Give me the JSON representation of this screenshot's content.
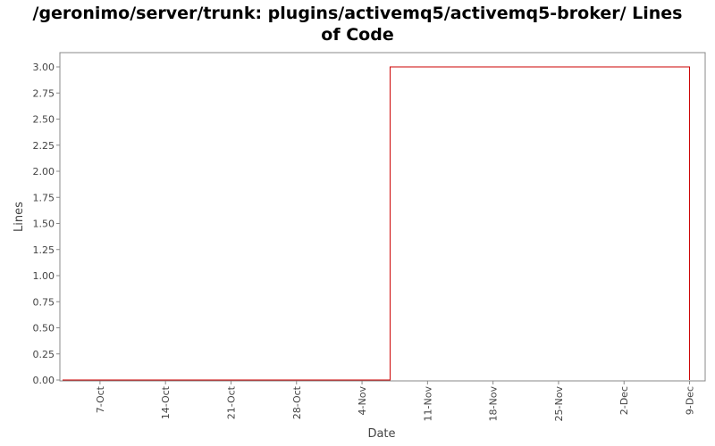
{
  "chart_data": {
    "type": "line",
    "title": "/geronimo/server/trunk: plugins/activemq5/activemq5-broker/ Lines of Code",
    "xlabel": "Date",
    "ylabel": "Lines",
    "x_ticks": [
      "7-Oct",
      "14-Oct",
      "21-Oct",
      "28-Oct",
      "4-Nov",
      "11-Nov",
      "18-Nov",
      "25-Nov",
      "2-Dec",
      "9-Dec"
    ],
    "y_ticks": [
      "0.00",
      "0.25",
      "0.50",
      "0.75",
      "1.00",
      "1.25",
      "1.50",
      "1.75",
      "2.00",
      "2.25",
      "2.50",
      "2.75",
      "3.00"
    ],
    "ylim": [
      0,
      3.15
    ],
    "xlim": [
      "2007-10-03",
      "2007-12-10"
    ],
    "grid": false,
    "legend": "none",
    "series": [
      {
        "color": "#cc0000",
        "step": true,
        "x": [
          "2007-10-03",
          "2007-11-07",
          "2007-11-07",
          "2007-12-09",
          "2007-12-09"
        ],
        "y": [
          0,
          0,
          3,
          3,
          0
        ]
      }
    ]
  }
}
